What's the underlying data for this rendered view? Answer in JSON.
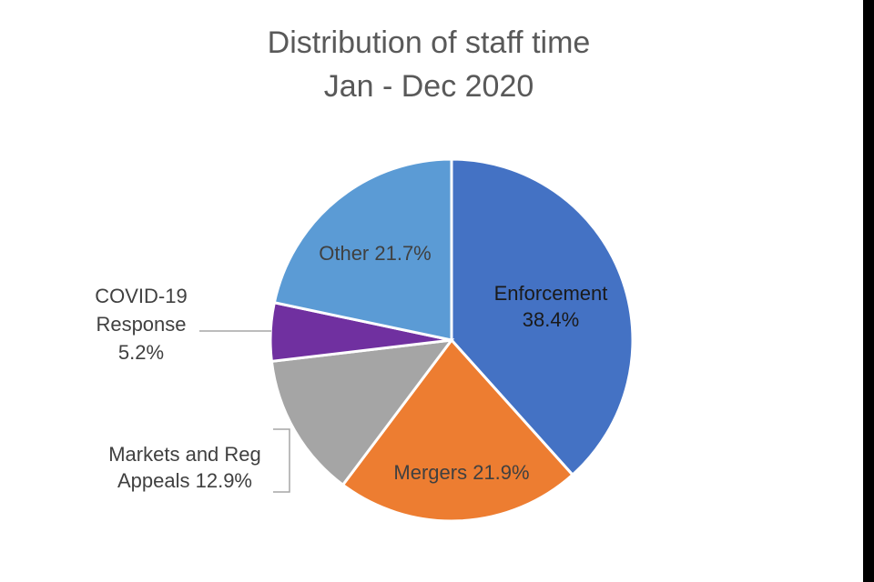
{
  "chart_data": {
    "type": "pie",
    "title": [
      "Distribution of staff time",
      "Jan - Dec 2020"
    ],
    "start_angle_deg": 0,
    "direction": "clockwise",
    "slices": [
      {
        "name": "Enforcement",
        "value": 38.4,
        "color": "#4472C4",
        "label_lines": [
          "Enforcement",
          "38.4%"
        ]
      },
      {
        "name": "Mergers",
        "value": 21.9,
        "color": "#ED7D31",
        "label_lines": [
          "Mergers 21.9%"
        ]
      },
      {
        "name": "Markets and Reg Appeals",
        "value": 12.9,
        "color": "#A5A5A5",
        "label_lines": [
          "Markets and Reg",
          "Appeals 12.9%"
        ]
      },
      {
        "name": "COVID-19 Response",
        "value": 5.2,
        "color": "#7030A0",
        "label_lines": [
          "COVID-19",
          "Response",
          "5.2%"
        ]
      },
      {
        "name": "Other",
        "value": 21.7,
        "color": "#5B9BD5",
        "label_lines": [
          "Other 21.7%"
        ]
      }
    ]
  }
}
